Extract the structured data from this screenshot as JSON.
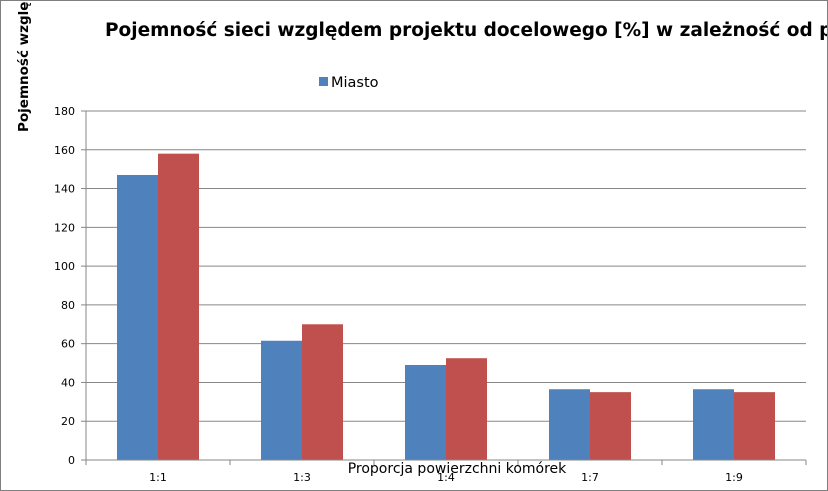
{
  "chart_data": {
    "type": "bar",
    "title": "Pojemność  sieci względem projektu docelowego [%] w zależność od proporcji powierzchni komórek",
    "xlabel": "Proporcja powierzchni komórek",
    "ylabel": "Pojemność  względem projektu docelowego [%]",
    "categories": [
      "1:1",
      "1:3",
      "1:4",
      "1:7",
      "1:9"
    ],
    "series": [
      {
        "name": "Miasto",
        "color": "#4f81bd",
        "values": [
          147,
          61.5,
          49,
          36.5,
          36.5
        ]
      },
      {
        "name": "",
        "color": "#c0504d",
        "values": [
          158,
          70,
          52.5,
          35,
          35
        ]
      }
    ],
    "ylim": [
      0,
      180
    ],
    "yticks": [
      0,
      20,
      40,
      60,
      80,
      100,
      120,
      140,
      160,
      180
    ],
    "grid": true,
    "legend": "top"
  }
}
